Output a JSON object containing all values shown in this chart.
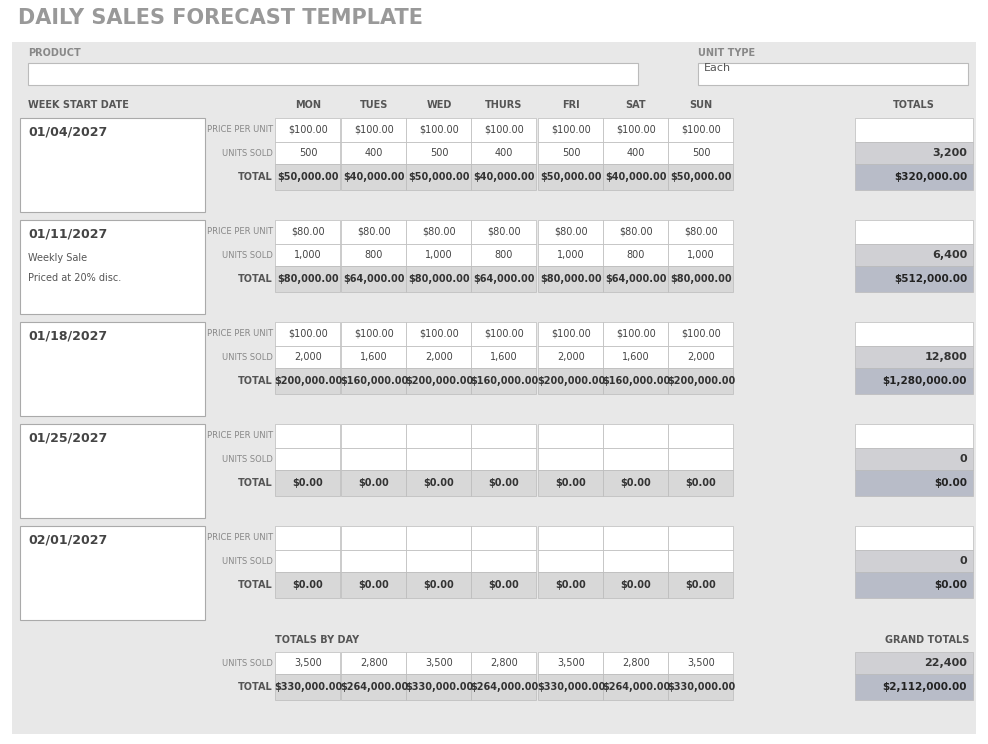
{
  "title": "DAILY SALES FORECAST TEMPLATE",
  "bg_color": "#eeeeee",
  "white": "#ffffff",
  "light_gray": "#d4d4d4",
  "mid_gray": "#c0c0c8",
  "dark_gray": "#b8bcc4",
  "panel_bg": "#e8e8e8",
  "days": [
    "MON",
    "TUES",
    "WED",
    "THURS",
    "FRI",
    "SAT",
    "SUN"
  ],
  "weeks": [
    {
      "date": "01/04/2027",
      "note1": "",
      "note2": "",
      "note3": "",
      "price_per_unit": [
        100,
        100,
        100,
        100,
        100,
        100,
        100
      ],
      "units_sold": [
        500,
        400,
        500,
        400,
        500,
        400,
        500
      ],
      "totals_units": 3200,
      "daily_totals": [
        50000,
        40000,
        50000,
        40000,
        50000,
        40000,
        50000
      ],
      "week_total": 320000
    },
    {
      "date": "01/11/2027",
      "note1": "Weekly Sale",
      "note2": "",
      "note3": "Priced at 20% disc.",
      "price_per_unit": [
        80,
        80,
        80,
        80,
        80,
        80,
        80
      ],
      "units_sold": [
        1000,
        800,
        1000,
        800,
        1000,
        800,
        1000
      ],
      "totals_units": 6400,
      "daily_totals": [
        80000,
        64000,
        80000,
        64000,
        80000,
        64000,
        80000
      ],
      "week_total": 512000
    },
    {
      "date": "01/18/2027",
      "note1": "",
      "note2": "",
      "note3": "",
      "price_per_unit": [
        100,
        100,
        100,
        100,
        100,
        100,
        100
      ],
      "units_sold": [
        2000,
        1600,
        2000,
        1600,
        2000,
        1600,
        2000
      ],
      "totals_units": 12800,
      "daily_totals": [
        200000,
        160000,
        200000,
        160000,
        200000,
        160000,
        200000
      ],
      "week_total": 1280000
    },
    {
      "date": "01/25/2027",
      "note1": "",
      "note2": "",
      "note3": "",
      "price_per_unit": [
        null,
        null,
        null,
        null,
        null,
        null,
        null
      ],
      "units_sold": [
        null,
        null,
        null,
        null,
        null,
        null,
        null
      ],
      "totals_units": 0,
      "daily_totals": [
        0,
        0,
        0,
        0,
        0,
        0,
        0
      ],
      "week_total": 0
    },
    {
      "date": "02/01/2027",
      "note1": "",
      "note2": "",
      "note3": "",
      "price_per_unit": [
        null,
        null,
        null,
        null,
        null,
        null,
        null
      ],
      "units_sold": [
        null,
        null,
        null,
        null,
        null,
        null,
        null
      ],
      "totals_units": 0,
      "daily_totals": [
        0,
        0,
        0,
        0,
        0,
        0,
        0
      ],
      "week_total": 0
    }
  ],
  "totals_by_day_units": [
    3500,
    2800,
    3500,
    2800,
    3500,
    2800,
    3500
  ],
  "grand_total_units": 22400,
  "totals_by_day_dollars": [
    330000,
    264000,
    330000,
    264000,
    330000,
    264000,
    330000
  ],
  "grand_total_dollars": 2112000
}
